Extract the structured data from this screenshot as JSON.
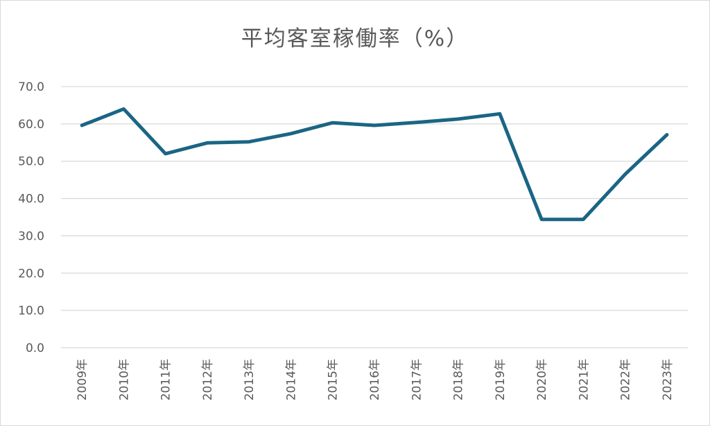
{
  "chart_data": {
    "type": "line",
    "title": "平均客室稼働率（%）",
    "xlabel": "",
    "ylabel": "",
    "categories": [
      "2009年",
      "2010年",
      "2011年",
      "2012年",
      "2013年",
      "2014年",
      "2015年",
      "2016年",
      "2017年",
      "2018年",
      "2019年",
      "2020年",
      "2021年",
      "2022年",
      "2023年"
    ],
    "series": [
      {
        "values": [
          59.6,
          64.0,
          52.0,
          54.9,
          55.2,
          57.4,
          60.3,
          59.6,
          60.4,
          61.3,
          62.7,
          34.4,
          34.4,
          46.5,
          57.1
        ],
        "color": "#1b6584"
      }
    ],
    "ylim": [
      0,
      70
    ],
    "yticks": [
      "0.0",
      "10.0",
      "20.0",
      "30.0",
      "40.0",
      "50.0",
      "60.0",
      "70.0"
    ],
    "grid": true,
    "legend": "none"
  }
}
